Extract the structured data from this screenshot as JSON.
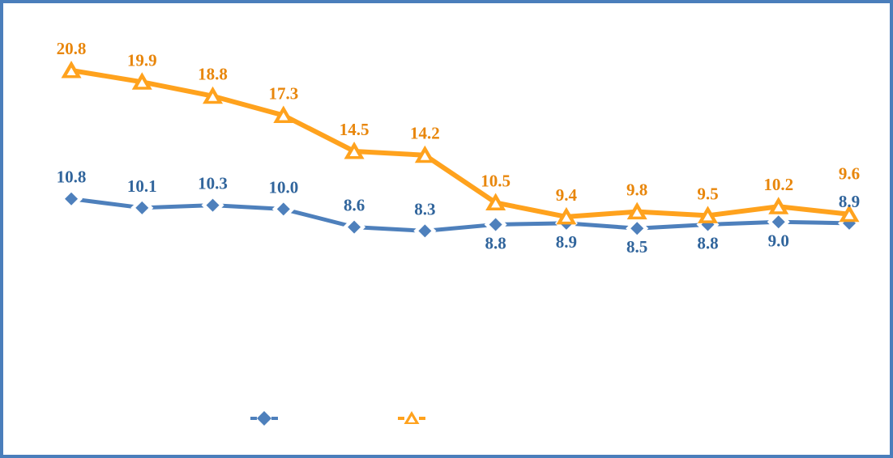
{
  "page": {
    "background_color": "#ffffff",
    "frame_border_color": "#4A7EBB"
  },
  "chart_data": {
    "type": "line",
    "title": "",
    "x_count": 12,
    "categories": [
      "",
      "",
      "",
      "",
      "",
      "",
      "",
      "",
      "",
      "",
      "",
      ""
    ],
    "axes_visible": false,
    "gridlines": false,
    "value_label_format": "one-decimal",
    "series": [
      {
        "name": "blue-diamond-series",
        "marker": "diamond",
        "line_color": "#4E80BC",
        "line_width": 5,
        "marker_fill": "#4E80BC",
        "marker_ring": "#FFFFFF",
        "label_color": "#31659C",
        "values": [
          10.8,
          10.1,
          10.3,
          10.0,
          8.6,
          8.3,
          8.8,
          8.9,
          8.5,
          8.8,
          9.0,
          8.9
        ],
        "label_side": [
          "above",
          "above",
          "above",
          "above",
          "above",
          "above",
          "below",
          "below",
          "below",
          "below",
          "below",
          "above"
        ]
      },
      {
        "name": "orange-triangle-series",
        "marker": "triangle",
        "line_color": "#FFA21D",
        "line_width": 6,
        "marker_fill": "#FFA21D",
        "marker_ring": "#FFFFFF",
        "label_color": "#E8860B",
        "values": [
          20.8,
          19.9,
          18.8,
          17.3,
          14.5,
          14.2,
          10.5,
          9.4,
          9.8,
          9.5,
          10.2,
          9.6
        ],
        "label_side": [
          "above",
          "above",
          "above",
          "above",
          "above",
          "above",
          "above",
          "above",
          "above",
          "above",
          "above",
          "above-far"
        ]
      }
    ],
    "legend": {
      "position": "bottom",
      "entries": [
        {
          "series": "blue-diamond-series",
          "marker": "diamond",
          "color": "#4E80BC",
          "label": ""
        },
        {
          "series": "orange-triangle-series",
          "marker": "triangle",
          "color": "#FFA21D",
          "label": ""
        }
      ]
    }
  }
}
